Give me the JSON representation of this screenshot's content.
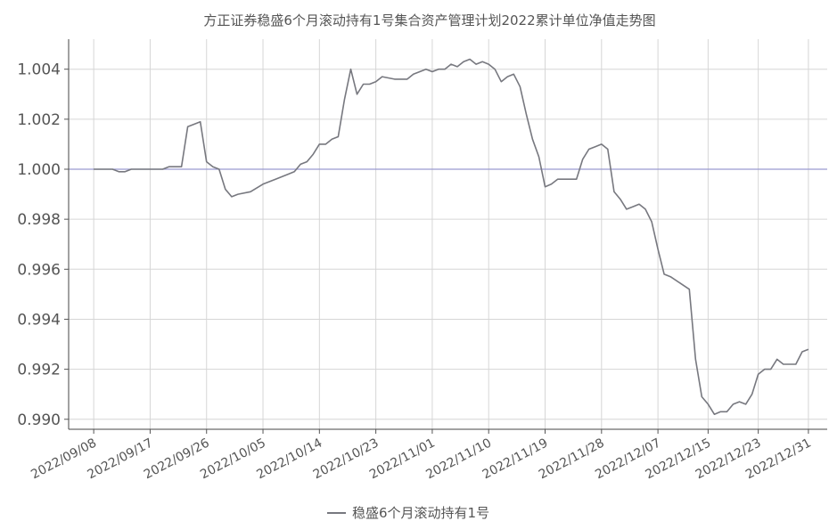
{
  "chart_data": {
    "type": "line",
    "title": "方正证券稳盛6个月滚动持有1号集合资产管理计划2022累计单位净值走势图",
    "xlabel": "",
    "ylabel": "",
    "x_ticks": [
      "2022/09/08",
      "2022/09/17",
      "2022/09/26",
      "2022/10/05",
      "2022/10/14",
      "2022/10/23",
      "2022/11/01",
      "2022/11/10",
      "2022/11/19",
      "2022/11/28",
      "2022/12/07",
      "2022/12/15",
      "2022/12/23",
      "2022/12/31"
    ],
    "y_ticks": [
      "0.990",
      "0.992",
      "0.994",
      "0.996",
      "0.998",
      "1.000",
      "1.002",
      "1.004"
    ],
    "ylim": [
      0.9896,
      1.0052
    ],
    "xlim": [
      "2022-09-04",
      "2022-12-31"
    ],
    "grid": true,
    "legend_position": "bottom-center",
    "series": [
      {
        "name": "稳盛6个月滚动持有1号",
        "color": "#77787f",
        "points": [
          [
            "2022-09-08",
            1.0
          ],
          [
            "2022-09-11",
            1.0
          ],
          [
            "2022-09-12",
            0.9999
          ],
          [
            "2022-09-13",
            0.9999
          ],
          [
            "2022-09-14",
            1.0
          ],
          [
            "2022-09-17",
            1.0
          ],
          [
            "2022-09-19",
            1.0
          ],
          [
            "2022-09-20",
            1.0001
          ],
          [
            "2022-09-21",
            1.0001
          ],
          [
            "2022-09-22",
            1.0001
          ],
          [
            "2022-09-23",
            1.0017
          ],
          [
            "2022-09-24",
            1.0018
          ],
          [
            "2022-09-25",
            1.0019
          ],
          [
            "2022-09-26",
            1.0003
          ],
          [
            "2022-09-27",
            1.0001
          ],
          [
            "2022-09-28",
            1.0
          ],
          [
            "2022-09-29",
            0.9992
          ],
          [
            "2022-09-30",
            0.9989
          ],
          [
            "2022-10-01",
            0.999
          ],
          [
            "2022-10-03",
            0.9991
          ],
          [
            "2022-10-05",
            0.9994
          ],
          [
            "2022-10-07",
            0.9996
          ],
          [
            "2022-10-09",
            0.9998
          ],
          [
            "2022-10-10",
            0.9999
          ],
          [
            "2022-10-11",
            1.0002
          ],
          [
            "2022-10-12",
            1.0003
          ],
          [
            "2022-10-13",
            1.0006
          ],
          [
            "2022-10-14",
            1.001
          ],
          [
            "2022-10-15",
            1.001
          ],
          [
            "2022-10-16",
            1.0012
          ],
          [
            "2022-10-17",
            1.0013
          ],
          [
            "2022-10-18",
            1.0028
          ],
          [
            "2022-10-19",
            1.004
          ],
          [
            "2022-10-20",
            1.003
          ],
          [
            "2022-10-21",
            1.0034
          ],
          [
            "2022-10-22",
            1.0034
          ],
          [
            "2022-10-23",
            1.0035
          ],
          [
            "2022-10-24",
            1.0037
          ],
          [
            "2022-10-26",
            1.0036
          ],
          [
            "2022-10-28",
            1.0036
          ],
          [
            "2022-10-29",
            1.0038
          ],
          [
            "2022-10-30",
            1.0039
          ],
          [
            "2022-10-31",
            1.004
          ],
          [
            "2022-11-01",
            1.0039
          ],
          [
            "2022-11-02",
            1.004
          ],
          [
            "2022-11-03",
            1.004
          ],
          [
            "2022-11-04",
            1.0042
          ],
          [
            "2022-11-05",
            1.0041
          ],
          [
            "2022-11-06",
            1.0043
          ],
          [
            "2022-11-07",
            1.0044
          ],
          [
            "2022-11-08",
            1.0042
          ],
          [
            "2022-11-09",
            1.0043
          ],
          [
            "2022-11-10",
            1.0042
          ],
          [
            "2022-11-11",
            1.004
          ],
          [
            "2022-11-12",
            1.0035
          ],
          [
            "2022-11-13",
            1.0037
          ],
          [
            "2022-11-14",
            1.0038
          ],
          [
            "2022-11-15",
            1.0033
          ],
          [
            "2022-11-16",
            1.0022
          ],
          [
            "2022-11-17",
            1.0012
          ],
          [
            "2022-11-18",
            1.0005
          ],
          [
            "2022-11-19",
            0.9993
          ],
          [
            "2022-11-20",
            0.9994
          ],
          [
            "2022-11-21",
            0.9996
          ],
          [
            "2022-11-22",
            0.9996
          ],
          [
            "2022-11-23",
            0.9996
          ],
          [
            "2022-11-24",
            0.9996
          ],
          [
            "2022-11-25",
            1.0004
          ],
          [
            "2022-11-26",
            1.0008
          ],
          [
            "2022-11-27",
            1.0009
          ],
          [
            "2022-11-28",
            1.001
          ],
          [
            "2022-11-29",
            1.0008
          ],
          [
            "2022-11-30",
            0.9991
          ],
          [
            "2022-12-01",
            0.9988
          ],
          [
            "2022-12-02",
            0.9984
          ],
          [
            "2022-12-03",
            0.9985
          ],
          [
            "2022-12-04",
            0.9986
          ],
          [
            "2022-12-05",
            0.9984
          ],
          [
            "2022-12-06",
            0.9979
          ],
          [
            "2022-12-07",
            0.9968
          ],
          [
            "2022-12-08",
            0.9958
          ],
          [
            "2022-12-09",
            0.9957
          ],
          [
            "2022-12-12",
            0.9952
          ],
          [
            "2022-12-13",
            0.9924
          ],
          [
            "2022-12-14",
            0.9909
          ],
          [
            "2022-12-15",
            0.9906
          ],
          [
            "2022-12-16",
            0.9902
          ],
          [
            "2022-12-17",
            0.9903
          ],
          [
            "2022-12-18",
            0.9903
          ],
          [
            "2022-12-19",
            0.9906
          ],
          [
            "2022-12-20",
            0.9907
          ],
          [
            "2022-12-21",
            0.9906
          ],
          [
            "2022-12-22",
            0.991
          ],
          [
            "2022-12-23",
            0.9918
          ],
          [
            "2022-12-24",
            0.992
          ],
          [
            "2022-12-25",
            0.992
          ],
          [
            "2022-12-26",
            0.9924
          ],
          [
            "2022-12-27",
            0.9922
          ],
          [
            "2022-12-28",
            0.9922
          ],
          [
            "2022-12-29",
            0.9922
          ],
          [
            "2022-12-30",
            0.9927
          ],
          [
            "2022-12-31",
            0.9928
          ]
        ]
      }
    ],
    "reference_line": {
      "value": 1.0,
      "color": "#9a9ad0"
    }
  }
}
